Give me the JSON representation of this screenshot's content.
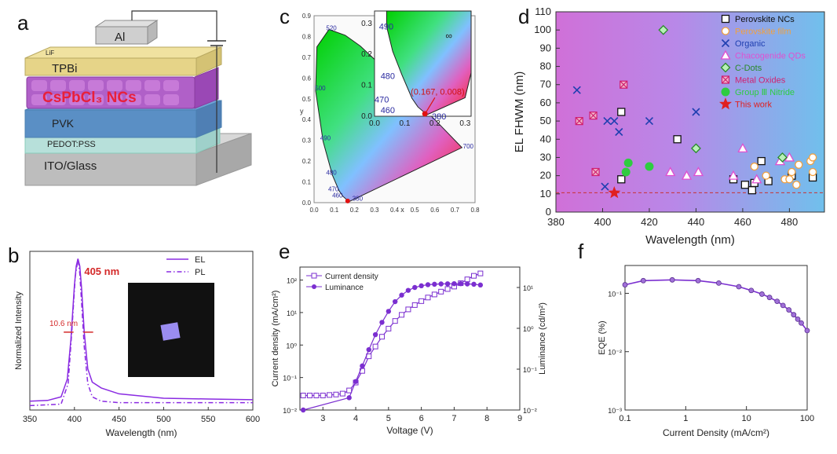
{
  "figure": {
    "panel_labels": [
      "a",
      "b",
      "c",
      "d",
      "e",
      "f"
    ],
    "colors": {
      "el": "#8a2be2",
      "purple": "#7b2fd0",
      "annot_red": "#d42a2a",
      "dashed_red": "#c83232"
    }
  },
  "device": {
    "layers": [
      "Al",
      "LiF",
      "TPBi",
      "CsPbCl3 NCs",
      "PVK",
      "PEDOT:PSS",
      "ITO/Glass"
    ],
    "active_layer_label": "CsPbCl₃ NCs"
  },
  "chart_data": [
    {
      "id": "b",
      "type": "line",
      "xlabel": "Wavelength (nm)",
      "ylabel": "Normalized Intensity",
      "xlim": [
        350,
        600
      ],
      "xticks": [
        "350",
        "400",
        "450",
        "500",
        "550",
        "600"
      ],
      "series": [
        {
          "name": "EL",
          "style": "solid",
          "x": [
            350,
            370,
            385,
            392,
            396,
            400,
            402,
            404,
            406,
            408,
            411,
            415,
            420,
            430,
            450,
            500,
            550,
            600
          ],
          "y": [
            0.03,
            0.035,
            0.06,
            0.18,
            0.45,
            0.82,
            0.95,
            1.0,
            0.95,
            0.8,
            0.5,
            0.25,
            0.16,
            0.12,
            0.08,
            0.05,
            0.045,
            0.04
          ]
        },
        {
          "name": "PL",
          "style": "dash-dot",
          "x": [
            350,
            385,
            393,
            397,
            401,
            404,
            406,
            408,
            411,
            415,
            420,
            430,
            450,
            500,
            600
          ],
          "y": [
            0.0,
            0.01,
            0.15,
            0.5,
            0.88,
            1.0,
            0.9,
            0.7,
            0.4,
            0.15,
            0.06,
            0.03,
            0.02,
            0.02,
            0.02
          ]
        }
      ],
      "annotations": [
        {
          "text": "405 nm"
        },
        {
          "text": "10.6 nm"
        }
      ]
    },
    {
      "id": "c",
      "type": "scatter",
      "xlabel": "x",
      "ylabel": "y",
      "main_xlim": [
        0.0,
        0.8
      ],
      "main_ylim": [
        0.0,
        0.9
      ],
      "main_xticks": [
        "0.0",
        "0.1",
        "0.2",
        "0.3",
        "0.4",
        "0.5",
        "0.6",
        "0.7",
        "0.8"
      ],
      "main_yticks": [
        "0.0",
        "0.1",
        "0.2",
        "0.3",
        "0.4",
        "0.5",
        "0.6",
        "0.7",
        "0.8",
        "0.9"
      ],
      "wavelength_labels": [
        "520",
        "500",
        "490",
        "480",
        "470",
        "460",
        "380",
        "700"
      ],
      "inset_xlim": [
        0.0,
        0.3
      ],
      "inset_ylim": [
        0.0,
        0.3
      ],
      "inset_xticks": [
        "0.0",
        "0.1",
        "0.2",
        "0.3"
      ],
      "inset_yticks": [
        "0.0",
        "0.1",
        "0.2",
        "0.3"
      ],
      "inset_wavelength_labels": [
        "490",
        "480",
        "470",
        "460",
        "380"
      ],
      "infinity_label": "∞",
      "points": [
        {
          "x": 0.167,
          "y": 0.008
        }
      ],
      "annotation": "(0.167, 0.008)"
    },
    {
      "id": "d",
      "type": "scatter",
      "xlabel": "Wavelength (nm)",
      "ylabel": "EL FHWM (nm)",
      "xlim": [
        380,
        495
      ],
      "ylim": [
        0,
        110
      ],
      "xticks": [
        380,
        400,
        420,
        440,
        460,
        480
      ],
      "yticks": [
        0,
        10,
        20,
        30,
        40,
        50,
        60,
        70,
        80,
        90,
        100,
        110
      ],
      "reference_line_y": 10.6,
      "series": [
        {
          "name": "Perovskite NCs",
          "marker": "square",
          "color": "#111111",
          "points": [
            [
              408,
              18
            ],
            [
              408,
              55
            ],
            [
              432,
              40
            ],
            [
              456,
              18
            ],
            [
              461,
              15
            ],
            [
              464,
              12
            ],
            [
              465,
              16
            ],
            [
              468,
              28
            ],
            [
              471,
              17
            ],
            [
              481,
              20
            ],
            [
              490,
              19
            ]
          ]
        },
        {
          "name": "Perovskite film",
          "marker": "circle",
          "color": "#f0a040",
          "points": [
            [
              465,
              25
            ],
            [
              470,
              20
            ],
            [
              478,
              18
            ],
            [
              480,
              18
            ],
            [
              481,
              22
            ],
            [
              483,
              15
            ],
            [
              484,
              26
            ],
            [
              489,
              28
            ],
            [
              490,
              30
            ],
            [
              490,
              22
            ]
          ]
        },
        {
          "name": "Organic",
          "marker": "x",
          "color": "#1f3fb0",
          "points": [
            [
              389,
              67
            ],
            [
              401,
              14
            ],
            [
              402,
              50
            ],
            [
              405,
              50
            ],
            [
              407,
              44
            ],
            [
              420,
              50
            ],
            [
              440,
              55
            ]
          ]
        },
        {
          "name": "Chacogenide QDs",
          "marker": "triangle",
          "color": "#e050d0",
          "points": [
            [
              429,
              22
            ],
            [
              436,
              20
            ],
            [
              441,
              22
            ],
            [
              456,
              20
            ],
            [
              460,
              35
            ],
            [
              466,
              18
            ],
            [
              476,
              28
            ],
            [
              480,
              30
            ]
          ]
        },
        {
          "name": "C-Dots",
          "marker": "diamond",
          "color": "#2a8a2a",
          "points": [
            [
              426,
              100
            ],
            [
              440,
              35
            ],
            [
              477,
              30
            ]
          ]
        },
        {
          "name": "Metal Oxides",
          "marker": "square-x",
          "color": "#d02070",
          "points": [
            [
              390,
              50
            ],
            [
              396,
              53
            ],
            [
              397,
              22
            ],
            [
              409,
              70
            ]
          ]
        },
        {
          "name": "Group Ⅲ Nitride",
          "marker": "circle-filled",
          "color": "#2ecc40",
          "points": [
            [
              410,
              22
            ],
            [
              411,
              27
            ],
            [
              420,
              25
            ]
          ]
        },
        {
          "name": "This work",
          "marker": "star",
          "color": "#e02020",
          "points": [
            [
              405,
              10.6
            ]
          ]
        }
      ]
    },
    {
      "id": "e",
      "type": "line",
      "xlabel": "Voltage (V)",
      "ylabel": "Current density (mA/cm²)",
      "y2label": "Luminance (cd/m²)",
      "xlim": [
        2.3,
        9
      ],
      "xticks": [
        "3",
        "4",
        "5",
        "6",
        "7",
        "8",
        "9"
      ],
      "yticks": [
        "10⁻²",
        "10⁻¹",
        "10⁰",
        "10¹",
        "10²"
      ],
      "y2ticks": [
        "10⁻²",
        "10⁻¹",
        "10⁰",
        "10¹"
      ],
      "series": [
        {
          "name": "Current density",
          "marker": "open-square",
          "x": [
            2.4,
            2.6,
            2.8,
            3.0,
            3.2,
            3.4,
            3.6,
            3.8,
            4.0,
            4.2,
            4.4,
            4.6,
            4.8,
            5.0,
            5.2,
            5.4,
            5.6,
            5.8,
            6.0,
            6.2,
            6.4,
            6.6,
            6.8,
            7.0,
            7.2,
            7.4,
            7.6,
            7.8
          ],
          "y": [
            0.028,
            0.028,
            0.028,
            0.028,
            0.029,
            0.03,
            0.032,
            0.04,
            0.07,
            0.16,
            0.45,
            0.9,
            1.8,
            3.2,
            5.5,
            8.5,
            12.5,
            17,
            22.5,
            29,
            36,
            44,
            53,
            63,
            80,
            105,
            135,
            160
          ]
        },
        {
          "name": "Luminance",
          "marker": "filled-circle",
          "x": [
            2.4,
            3.8,
            4.0,
            4.2,
            4.4,
            4.6,
            4.8,
            5.0,
            5.2,
            5.4,
            5.6,
            5.8,
            6.0,
            6.2,
            6.4,
            6.6,
            6.8,
            7.0,
            7.2,
            7.4,
            7.6,
            7.8
          ],
          "y": [
            0.01,
            0.02,
            0.05,
            0.12,
            0.3,
            0.7,
            1.4,
            2.6,
            4.5,
            6.5,
            8.5,
            10,
            11,
            11.7,
            12,
            12.2,
            12.3,
            12.4,
            12.4,
            12.2,
            12.0,
            11.5
          ]
        }
      ]
    },
    {
      "id": "f",
      "type": "line",
      "xlabel": "Current Density (mA/cm²)",
      "ylabel": "EQE (%)",
      "log_x": true,
      "log_y": true,
      "xlim": [
        0.1,
        100
      ],
      "ylim": [
        0.001,
        0.3
      ],
      "xticks": [
        "0.1",
        "1",
        "10",
        "100"
      ],
      "yticks": [
        "10⁻³",
        "10⁻²",
        "10⁻¹"
      ],
      "series": [
        {
          "name": "EQE",
          "x": [
            0.1,
            0.2,
            0.6,
            1.6,
            3.5,
            7.5,
            12,
            18,
            24,
            32,
            40,
            50,
            60,
            70,
            80,
            100
          ],
          "y": [
            0.14,
            0.165,
            0.17,
            0.165,
            0.15,
            0.13,
            0.112,
            0.097,
            0.085,
            0.073,
            0.062,
            0.052,
            0.043,
            0.036,
            0.031,
            0.023
          ]
        }
      ]
    }
  ]
}
